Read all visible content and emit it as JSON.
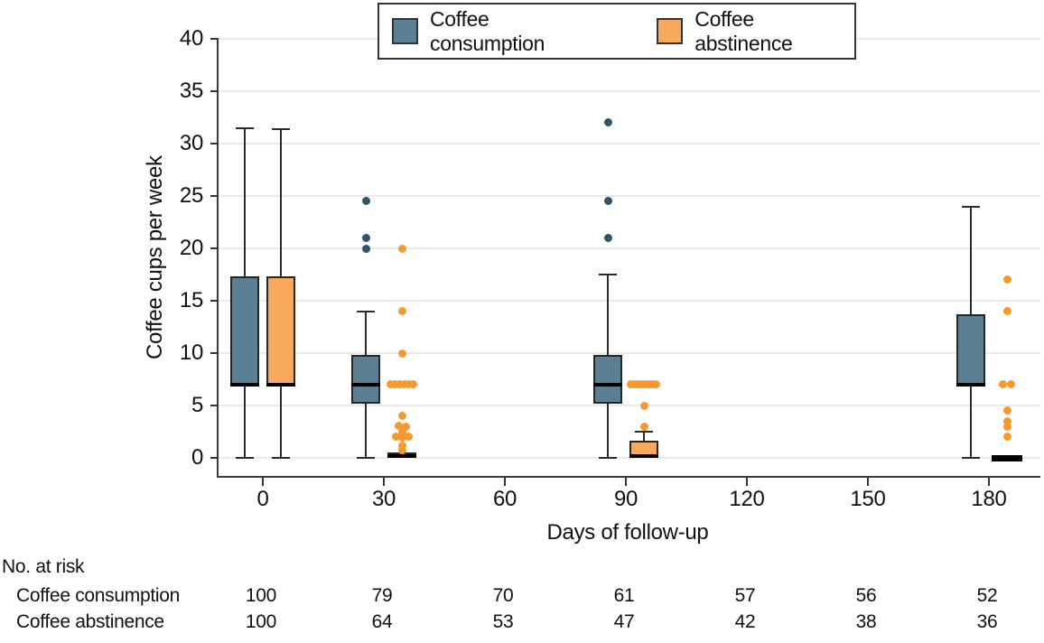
{
  "chart_data": {
    "type": "boxplot",
    "title": "",
    "xlabel": "Days of follow-up",
    "ylabel": "Coffee cups per week",
    "ylim": [
      0,
      40
    ],
    "yticks": [
      0,
      5,
      10,
      15,
      20,
      25,
      30,
      35,
      40
    ],
    "xticks": [
      0,
      30,
      60,
      90,
      120,
      150,
      180
    ],
    "grid": "horizontal-light-gray",
    "legend_position": "top-center",
    "series": [
      {
        "name": "Coffee consumption",
        "color": "#5b8093",
        "outlier_color": "#2e5568",
        "boxes": [
          {
            "x": 0,
            "min": 0,
            "q1": 6.8,
            "median": 7,
            "q3": 17.3,
            "max": 31.5,
            "outliers": []
          },
          {
            "x": 30,
            "min": 0,
            "q1": 5.2,
            "median": 7,
            "q3": 9.8,
            "max": 14,
            "outliers": [
              {
                "v": 20
              },
              {
                "v": 21
              },
              {
                "v": 24.5
              }
            ]
          },
          {
            "x": 90,
            "min": 0,
            "q1": 5.2,
            "median": 7,
            "q3": 9.8,
            "max": 17.5,
            "outliers": [
              {
                "v": 21
              },
              {
                "v": 24.5
              },
              {
                "v": 32
              }
            ]
          },
          {
            "x": 180,
            "min": 0,
            "q1": 6.8,
            "median": 7,
            "q3": 13.7,
            "max": 24,
            "outliers": []
          }
        ]
      },
      {
        "name": "Coffee abstinence",
        "color": "#f9a95c",
        "outlier_color": "#f8992e",
        "boxes": [
          {
            "x": 0,
            "min": 0,
            "q1": 6.8,
            "median": 7,
            "q3": 17.3,
            "max": 31.4,
            "outliers": []
          },
          {
            "x": 30,
            "min": 0,
            "q1": 0,
            "median": 0.2,
            "q3": 0.5,
            "max": 0.5,
            "outliers": [
              {
                "v": 20
              },
              {
                "v": 14
              },
              {
                "v": 10
              },
              {
                "v": 7,
                "dx": -13
              },
              {
                "v": 7,
                "dx": -8
              },
              {
                "v": 7,
                "dx": -3
              },
              {
                "v": 7,
                "dx": 2
              },
              {
                "v": 7,
                "dx": 7
              },
              {
                "v": 7,
                "dx": 12
              },
              {
                "v": 4
              },
              {
                "v": 3.1,
                "dx": -4
              },
              {
                "v": 3,
                "dx": 4
              },
              {
                "v": 2.5
              },
              {
                "v": 2,
                "dx": -7
              },
              {
                "v": 1.9
              },
              {
                "v": 2,
                "dx": 7
              },
              {
                "v": 1.2
              },
              {
                "v": 0.7
              }
            ]
          },
          {
            "x": 90,
            "min": 0,
            "q1": 0,
            "median": 0.2,
            "q3": 1.6,
            "max": 2.5,
            "outliers": [
              {
                "v": 7,
                "dx": -15
              },
              {
                "v": 7,
                "dx": -11
              },
              {
                "v": 7,
                "dx": -7
              },
              {
                "v": 7,
                "dx": -3
              },
              {
                "v": 7,
                "dx": 1
              },
              {
                "v": 7,
                "dx": 5
              },
              {
                "v": 7,
                "dx": 9
              },
              {
                "v": 7,
                "dx": 13
              },
              {
                "v": 5
              },
              {
                "v": 3
              }
            ]
          },
          {
            "x": 180,
            "min": 0,
            "q1": 0,
            "median": 0,
            "q3": 0,
            "max": 0,
            "collapsed_black": true,
            "outliers": [
              {
                "v": 17
              },
              {
                "v": 14
              },
              {
                "v": 7,
                "dx": -5
              },
              {
                "v": 7,
                "dx": 4
              },
              {
                "v": 4.5
              },
              {
                "v": 3.5
              },
              {
                "v": 3
              },
              {
                "v": 2
              }
            ]
          }
        ]
      }
    ],
    "at_risk": {
      "title": "No. at risk",
      "columns": [
        0,
        30,
        60,
        90,
        120,
        150,
        180
      ],
      "rows": [
        {
          "label": "Coffee consumption",
          "values": [
            100,
            79,
            70,
            61,
            57,
            56,
            52
          ]
        },
        {
          "label": "Coffee abstinence",
          "values": [
            100,
            64,
            53,
            47,
            42,
            38,
            36
          ]
        }
      ]
    }
  }
}
